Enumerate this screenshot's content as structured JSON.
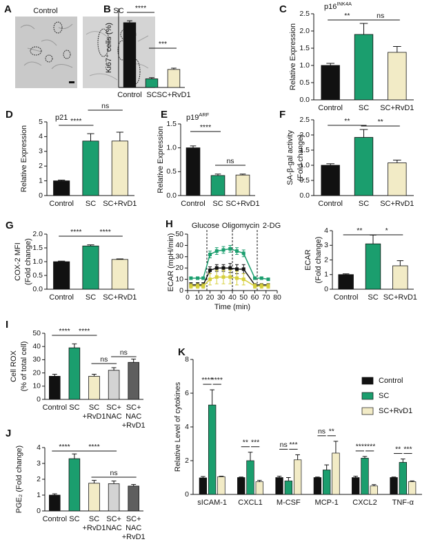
{
  "chart_data": [
    {
      "type": "image",
      "panel": "A",
      "labels": [
        "Control",
        "SC"
      ]
    },
    {
      "type": "bar",
      "panel": "B",
      "ylabel": [
        "Ki67⁺ cells (%)"
      ],
      "categories": [
        "Control",
        "SC",
        "SC+RvD1"
      ],
      "values": [
        45,
        6,
        12.5
      ],
      "errors": [
        1.3,
        0.8,
        0.9
      ],
      "colors": [
        "#111111",
        "#1b9e6e",
        "#f2ebc6"
      ],
      "ylim": [
        0,
        55
      ],
      "annotations": [
        "****",
        "***"
      ]
    },
    {
      "type": "bar",
      "panel": "C",
      "title": {
        "text": "p16",
        "sup": "INK4A"
      },
      "ylabel": [
        "Relative Expression"
      ],
      "categories": [
        "Control",
        "SC",
        "SC+RvD1"
      ],
      "values": [
        1.0,
        1.9,
        1.38
      ],
      "errors": [
        0.06,
        0.32,
        0.17
      ],
      "colors": [
        "#111111",
        "#1b9e6e",
        "#f2ebc6"
      ],
      "ylim": [
        0,
        2.5
      ],
      "yticks": [
        {
          "value": 0,
          "label": "0.0"
        },
        {
          "value": 0.5,
          "label": "0.5"
        },
        {
          "value": 1,
          "label": "1.0"
        },
        {
          "value": 1.5,
          "label": "1.5"
        },
        {
          "value": 2,
          "label": "2.0"
        },
        {
          "value": 2.5,
          "label": "2.5"
        }
      ],
      "annotations": [
        "**",
        "ns"
      ]
    },
    {
      "type": "bar",
      "panel": "D",
      "title": "p21",
      "ylabel": [
        "Relative Expression"
      ],
      "categories": [
        "Control",
        "SC",
        "SC+RvD1"
      ],
      "values": [
        1.0,
        3.7,
        3.7
      ],
      "errors": [
        0.05,
        0.5,
        0.6
      ],
      "colors": [
        "#111111",
        "#1b9e6e",
        "#f2ebc6"
      ],
      "ylim": [
        0,
        5
      ],
      "yticks": [
        0,
        1,
        2,
        3,
        4,
        5
      ],
      "annotations": [
        "****",
        "ns"
      ]
    },
    {
      "type": "bar",
      "panel": "E",
      "title": {
        "text": "p19",
        "sup": "ARF"
      },
      "ylabel": [
        "Relative Expression"
      ],
      "categories": [
        "Control",
        "SC",
        "SC+RvD1"
      ],
      "values": [
        1.0,
        0.42,
        0.43
      ],
      "errors": [
        0.04,
        0.03,
        0.02
      ],
      "colors": [
        "#111111",
        "#1b9e6e",
        "#f2ebc6"
      ],
      "ylim": [
        0,
        1.5
      ],
      "yticks": [
        {
          "value": 0,
          "label": "0.0"
        },
        {
          "value": 0.5,
          "label": "0.5"
        },
        {
          "value": 1,
          "label": "1.0"
        },
        {
          "value": 1.5,
          "label": "1.5"
        }
      ],
      "annotations": [
        "****",
        "ns"
      ]
    },
    {
      "type": "bar",
      "panel": "F",
      "ylabel": [
        "SA-β-gal activity",
        "(Fold change)"
      ],
      "categories": [
        "Control",
        "SC",
        "SC+RvD1"
      ],
      "values": [
        1.0,
        1.92,
        1.08
      ],
      "errors": [
        0.05,
        0.26,
        0.09
      ],
      "colors": [
        "#111111",
        "#1b9e6e",
        "#f2ebc6"
      ],
      "ylim": [
        0,
        2.5
      ],
      "yticks": [
        {
          "value": 0,
          "label": "0.0"
        },
        {
          "value": 0.5,
          "label": "0.5"
        },
        {
          "value": 1,
          "label": "1.0"
        },
        {
          "value": 1.5,
          "label": "1.5"
        },
        {
          "value": 2,
          "label": "2.0"
        },
        {
          "value": 2.5,
          "label": "2.5"
        }
      ],
      "annotations": [
        "**",
        "**"
      ]
    },
    {
      "type": "bar",
      "panel": "G",
      "ylabel": [
        "COX-2 MFI",
        "(Fold change)"
      ],
      "categories": [
        "Control",
        "SC",
        "SC+RvD1"
      ],
      "values": [
        1.0,
        1.57,
        1.08
      ],
      "errors": [
        0.02,
        0.04,
        0.02
      ],
      "colors": [
        "#111111",
        "#1b9e6e",
        "#f2ebc6"
      ],
      "ylim": [
        0,
        2
      ],
      "yticks": [
        {
          "value": 0,
          "label": "0.0"
        },
        {
          "value": 0.5,
          "label": "0.5"
        },
        {
          "value": 1,
          "label": "1.0"
        },
        {
          "value": 1.5,
          "label": "1.5"
        },
        {
          "value": 2,
          "label": "2.0"
        }
      ],
      "annotations": [
        "****",
        "****"
      ]
    },
    {
      "type": "line",
      "panel": "H",
      "ylabel": [
        "ECAR (mpH/min)"
      ],
      "xlabel": "Time (min)",
      "annotations": [
        "Glucose",
        "Oligomycin",
        "2-DG"
      ],
      "x": [
        3,
        9,
        14,
        20,
        26,
        32,
        38,
        44,
        50,
        60,
        66,
        72
      ],
      "series": [
        {
          "color": "#1b9e6e",
          "values": [
            11,
            11,
            11,
            32,
            35,
            36,
            37,
            35,
            33,
            11,
            11,
            10
          ],
          "errors": [
            1,
            1,
            1,
            3,
            3,
            3,
            3,
            3,
            3,
            1,
            1,
            1
          ]
        },
        {
          "color": "#111111",
          "values": [
            5,
            5,
            5,
            18,
            20,
            20,
            20,
            19,
            19,
            5,
            5,
            5
          ],
          "errors": [
            2,
            2,
            2,
            3,
            3,
            3,
            4,
            4,
            4,
            1,
            1,
            1
          ]
        },
        {
          "color": "#d6cf3c",
          "values": [
            4,
            4,
            4,
            10,
            12,
            12,
            12,
            11,
            10,
            4,
            4,
            4
          ],
          "errors": [
            2,
            2,
            2,
            5,
            6,
            6,
            6,
            6,
            5,
            2,
            2,
            2
          ]
        }
      ],
      "xlim": [
        0,
        80
      ],
      "xticks": [
        0,
        10,
        20,
        30,
        40,
        50,
        60,
        70,
        80
      ],
      "ylim": [
        0,
        50
      ],
      "yticks": [
        0,
        10,
        20,
        30,
        40,
        50
      ]
    },
    {
      "type": "bar",
      "ylabel": [
        "ECAR",
        "(Fold change)"
      ],
      "categories": [
        "Control",
        "SC",
        "SC+RvD1"
      ],
      "values": [
        1.0,
        3.1,
        1.6
      ],
      "errors": [
        0.05,
        0.6,
        0.35
      ],
      "colors": [
        "#111111",
        "#1b9e6e",
        "#f2ebc6"
      ],
      "ylim": [
        0,
        4
      ],
      "yticks": [
        0,
        1,
        2,
        3,
        4
      ],
      "annotations": [
        "**",
        "*"
      ]
    },
    {
      "type": "bar",
      "panel": "I",
      "ylabel": [
        "Cell ROX",
        "(% of total cell)"
      ],
      "categories": [
        [
          "Control"
        ],
        [
          "SC"
        ],
        [
          "SC",
          "+RvD1"
        ],
        [
          "SC+",
          "NAC"
        ],
        [
          "SC+",
          "NAC",
          "+RvD1"
        ]
      ],
      "values": [
        17.5,
        39,
        17.5,
        22,
        28
      ],
      "errors": [
        1.5,
        3,
        1.5,
        2,
        2.5
      ],
      "colors": [
        "#111111",
        "#1b9e6e",
        "#f2ebc6",
        "#d3d3d3",
        "#5e5e5e"
      ],
      "ylim": [
        0,
        50
      ],
      "yticks": [
        0,
        10,
        20,
        30,
        40,
        50
      ],
      "annotations": [
        "****",
        "****",
        "ns",
        "ns"
      ]
    },
    {
      "type": "bar",
      "panel": "J",
      "ylabel": [
        "PGE₂ (Fold change)"
      ],
      "categories": [
        [
          "Control"
        ],
        [
          "SC"
        ],
        [
          "SC",
          "+RvD1"
        ],
        [
          "SC+",
          "NAC"
        ],
        [
          "SC+",
          "NAC",
          "+RvD1"
        ]
      ],
      "values": [
        1.0,
        3.3,
        1.75,
        1.72,
        1.57
      ],
      "errors": [
        0.08,
        0.3,
        0.18,
        0.17,
        0.1
      ],
      "colors": [
        "#111111",
        "#1b9e6e",
        "#f2ebc6",
        "#d3d3d3",
        "#5e5e5e"
      ],
      "ylim": [
        0,
        4
      ],
      "yticks": [
        0,
        1,
        2,
        3,
        4
      ],
      "annotations": [
        "****",
        "****",
        "ns"
      ]
    },
    {
      "type": "bar",
      "panel": "K",
      "ylabel": [
        "Relative Level of cytokines"
      ],
      "categories": [
        "sICAM-1",
        "CXCL1",
        "M-CSF",
        "MCP-1",
        "CXCL2",
        "TNF-α"
      ],
      "series": [
        {
          "name": "Control",
          "color": "#111111",
          "values": [
            0.98,
            1.0,
            1.0,
            1.0,
            1.0,
            1.0
          ],
          "errors": [
            0.08,
            0.03,
            0.08,
            0.03,
            0.08,
            0.03
          ]
        },
        {
          "name": "SC",
          "color": "#1b9e6e",
          "values": [
            5.3,
            2.0,
            0.8,
            1.45,
            2.15,
            1.9
          ],
          "errors": [
            0.9,
            0.5,
            0.2,
            0.3,
            0.1,
            0.2
          ]
        },
        {
          "name": "SC+RvD1",
          "color": "#f2ebc6",
          "values": [
            1.05,
            0.75,
            2.05,
            2.45,
            0.5,
            0.75
          ],
          "errors": [
            0.03,
            0.08,
            0.3,
            0.7,
            0.08,
            0.05
          ]
        }
      ],
      "ylim": [
        0,
        8
      ],
      "yticks": [
        0,
        2,
        4,
        6,
        8
      ],
      "annotations": [
        "****",
        "****",
        "**",
        "***",
        "ns",
        "***",
        "ns",
        "**",
        "***",
        "****",
        "**",
        "***"
      ]
    }
  ]
}
